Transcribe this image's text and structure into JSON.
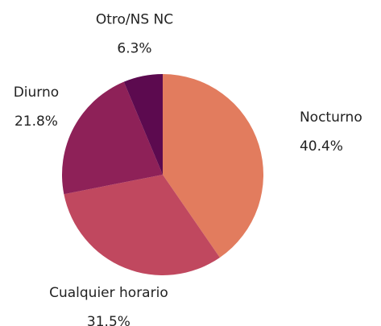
{
  "chart_data": {
    "type": "pie",
    "categories": [
      "Nocturno",
      "Cualquier horario",
      "Diurno",
      "Otro/NS NC"
    ],
    "values": [
      40.4,
      31.5,
      21.8,
      6.3
    ],
    "value_labels": [
      "40.4%",
      "31.5%",
      "21.8%",
      "6.3%"
    ],
    "colors": [
      "#e27c5e",
      "#c0485f",
      "#8e2158",
      "#5c0a4f"
    ]
  }
}
